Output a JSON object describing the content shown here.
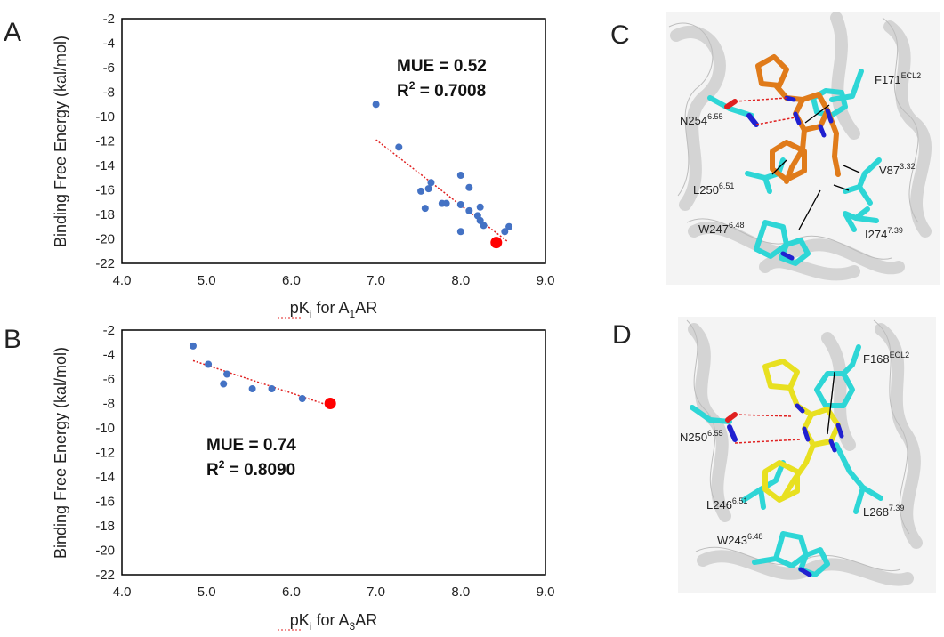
{
  "panels": {
    "A": "A",
    "B": "B",
    "C": "C",
    "D": "D"
  },
  "chart_data": [
    {
      "panel": "A",
      "type": "scatter",
      "xlabel_parts": {
        "pre": "pK",
        "sub1": "i",
        "mid": " for A",
        "sub2": "1",
        "post": "AR"
      },
      "ylabel": "Binding Free Energy (kal/mol)",
      "xlim": [
        4.0,
        9.0
      ],
      "ylim": [
        -22,
        -2
      ],
      "xticks": [
        "4.0",
        "5.0",
        "6.0",
        "7.0",
        "8.0",
        "9.0"
      ],
      "yticks": [
        "-2",
        "-4",
        "-6",
        "-8",
        "-10",
        "-12",
        "-14",
        "-16",
        "-18",
        "-20",
        "-22"
      ],
      "points": [
        {
          "x": 7.0,
          "y": -9.0
        },
        {
          "x": 7.27,
          "y": -12.5
        },
        {
          "x": 7.53,
          "y": -16.1
        },
        {
          "x": 7.58,
          "y": -17.5
        },
        {
          "x": 7.62,
          "y": -15.9
        },
        {
          "x": 7.65,
          "y": -15.4
        },
        {
          "x": 7.78,
          "y": -17.1
        },
        {
          "x": 7.83,
          "y": -17.1
        },
        {
          "x": 8.0,
          "y": -14.8
        },
        {
          "x": 8.0,
          "y": -17.2
        },
        {
          "x": 8.0,
          "y": -19.4
        },
        {
          "x": 8.1,
          "y": -15.8
        },
        {
          "x": 8.1,
          "y": -17.7
        },
        {
          "x": 8.2,
          "y": -18.1
        },
        {
          "x": 8.23,
          "y": -17.4
        },
        {
          "x": 8.23,
          "y": -18.5
        },
        {
          "x": 8.27,
          "y": -18.9
        },
        {
          "x": 8.52,
          "y": -19.4
        },
        {
          "x": 8.57,
          "y": -19.0
        }
      ],
      "highlight": {
        "x": 8.42,
        "y": -20.3
      },
      "trendline": {
        "x": [
          7.0,
          8.55
        ],
        "y": [
          -11.9,
          -20.2
        ]
      },
      "stats": {
        "mue": "MUE = 0.52",
        "r2_pre": "R",
        "r2_sup": "2",
        "r2_post": " = 0.7008"
      }
    },
    {
      "panel": "B",
      "type": "scatter",
      "xlabel_parts": {
        "pre": "pK",
        "sub1": "i",
        "mid": " for A",
        "sub2": "3",
        "post": "AR"
      },
      "ylabel": "Binding Free Energy (kal/mol)",
      "xlim": [
        4.0,
        9.0
      ],
      "ylim": [
        -22,
        -2
      ],
      "xticks": [
        "4.0",
        "5.0",
        "6.0",
        "7.0",
        "8.0",
        "9.0"
      ],
      "yticks": [
        "-2",
        "-4",
        "-6",
        "-8",
        "-10",
        "-12",
        "-14",
        "-16",
        "-18",
        "-20",
        "-22"
      ],
      "points": [
        {
          "x": 4.84,
          "y": -3.3
        },
        {
          "x": 5.02,
          "y": -4.8
        },
        {
          "x": 5.2,
          "y": -6.4
        },
        {
          "x": 5.24,
          "y": -5.6
        },
        {
          "x": 5.54,
          "y": -6.8
        },
        {
          "x": 5.77,
          "y": -6.8
        },
        {
          "x": 6.13,
          "y": -7.6
        }
      ],
      "highlight": {
        "x": 6.46,
        "y": -8.0
      },
      "trendline": {
        "x": [
          4.84,
          6.46
        ],
        "y": [
          -4.5,
          -8.2
        ]
      },
      "stats": {
        "mue": "MUE = 0.74",
        "r2_pre": "R",
        "r2_sup": "2",
        "r2_post": " = 0.8090"
      }
    }
  ],
  "structures": {
    "C": {
      "labels": [
        {
          "base": "F171",
          "sup": "ECL2"
        },
        {
          "base": "N254",
          "sup": "6.55"
        },
        {
          "base": "V87",
          "sup": "3.32"
        },
        {
          "base": "L250",
          "sup": "6.51"
        },
        {
          "base": "W247",
          "sup": "6.48"
        },
        {
          "base": "I274",
          "sup": "7.39"
        }
      ]
    },
    "D": {
      "labels": [
        {
          "base": "F168",
          "sup": "ECL2"
        },
        {
          "base": "N250",
          "sup": "6.55"
        },
        {
          "base": "L246",
          "sup": "6.51"
        },
        {
          "base": "L268",
          "sup": "7.39"
        },
        {
          "base": "W243",
          "sup": "6.48"
        }
      ]
    }
  },
  "colors": {
    "point": "#4472c4",
    "highlight": "#ff0000",
    "trend": "#e02020",
    "ribbon": "#dcdcdc",
    "ligand_c": "#e07b1a",
    "ligand_d": "#e8e020",
    "residue": "#2ed6d6",
    "nitrogen": "#2020d0",
    "oxygen": "#e02020"
  }
}
